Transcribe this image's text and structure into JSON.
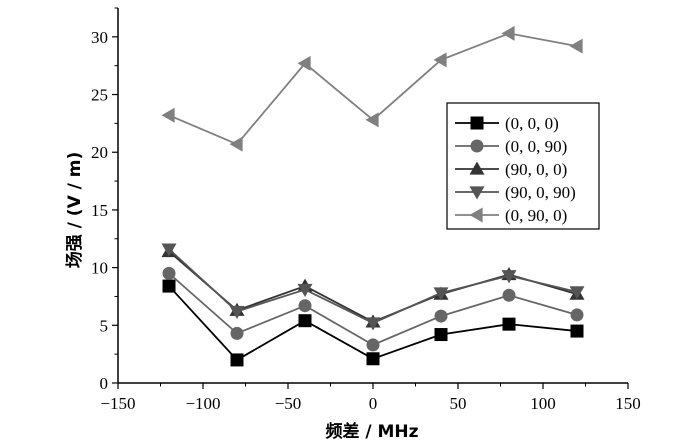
{
  "chart_data": {
    "type": "line",
    "xlabel": "频差 / MHz",
    "ylabel": "场强 / (V / m)",
    "xlim": [
      -150,
      150
    ],
    "ylim": [
      0,
      32.5
    ],
    "xticks": [
      -150,
      -100,
      -50,
      0,
      50,
      100,
      150
    ],
    "yticks": [
      0,
      5,
      10,
      15,
      20,
      25,
      30
    ],
    "x": [
      -120,
      -80,
      -40,
      0,
      40,
      80,
      120
    ],
    "grid": false,
    "legend_position": "right",
    "series": [
      {
        "name": "(0, 0, 0)",
        "marker": "square",
        "color": "#000000",
        "values": [
          8.4,
          2.0,
          5.4,
          2.1,
          4.2,
          5.1,
          4.5
        ]
      },
      {
        "name": "(0, 0, 90)",
        "marker": "circle",
        "color": "#666666",
        "values": [
          9.5,
          4.3,
          6.7,
          3.3,
          5.8,
          7.6,
          5.9
        ]
      },
      {
        "name": "(90, 0, 0)",
        "marker": "triangle-up",
        "color": "#333333",
        "values": [
          11.4,
          6.3,
          8.4,
          5.3,
          7.7,
          9.4,
          7.7
        ]
      },
      {
        "name": "(90, 0, 90)",
        "marker": "triangle-down",
        "color": "#555555",
        "values": [
          11.6,
          6.2,
          8.1,
          5.2,
          7.8,
          9.3,
          7.9
        ]
      },
      {
        "name": "(0, 90, 0)",
        "marker": "triangle-left",
        "color": "#808080",
        "values": [
          23.2,
          20.7,
          27.7,
          22.8,
          28.0,
          30.3,
          29.2
        ]
      }
    ]
  }
}
